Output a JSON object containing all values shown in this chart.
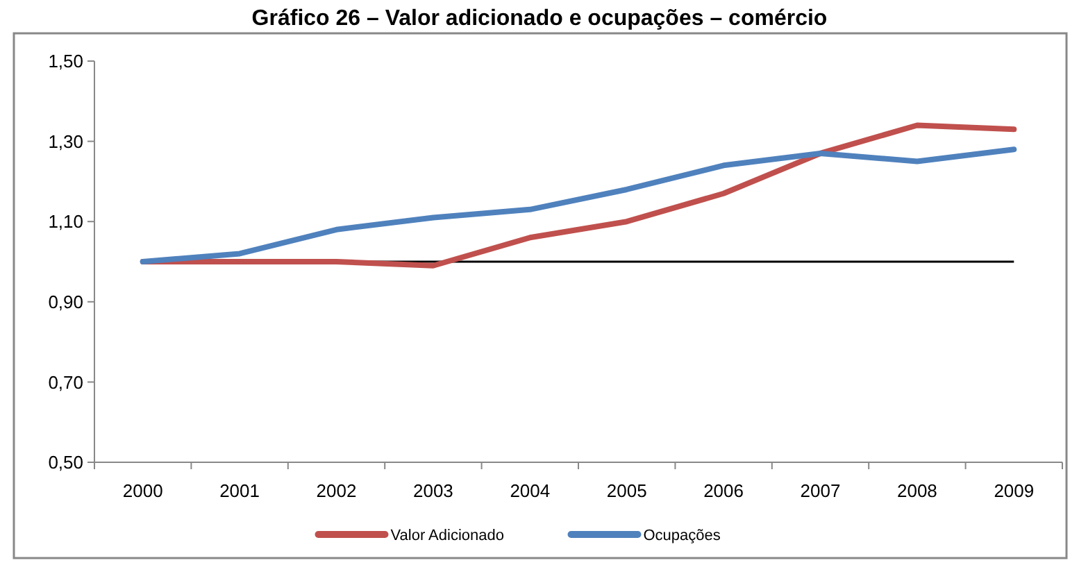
{
  "chart_data": {
    "type": "line",
    "title": "Gráfico 26 – Valor adicionado e ocupações – comércio",
    "categories": [
      "2000",
      "2001",
      "2002",
      "2003",
      "2004",
      "2005",
      "2006",
      "2007",
      "2008",
      "2009"
    ],
    "series": [
      {
        "name": "Valor Adicionado",
        "color": "#c0504d",
        "values": [
          1.0,
          1.0,
          1.0,
          0.99,
          1.06,
          1.1,
          1.17,
          1.27,
          1.34,
          1.33
        ]
      },
      {
        "name": "Ocupações",
        "color": "#4f81bd",
        "values": [
          1.0,
          1.02,
          1.08,
          1.11,
          1.13,
          1.18,
          1.24,
          1.27,
          1.25,
          1.28
        ]
      }
    ],
    "ylim": [
      0.5,
      1.5
    ],
    "yticks": [
      {
        "value": 0.5,
        "label": "0,50"
      },
      {
        "value": 0.7,
        "label": "0,70"
      },
      {
        "value": 0.9,
        "label": "0,90"
      },
      {
        "value": 1.1,
        "label": "1,10"
      },
      {
        "value": 1.3,
        "label": "1,30"
      },
      {
        "value": 1.5,
        "label": "1,50"
      }
    ],
    "ref_lines": [
      {
        "axis": "y",
        "value": 1.0,
        "color": "#000000"
      }
    ],
    "grid": false,
    "legend": "bottom",
    "marker": "none",
    "line_style": "solid"
  }
}
